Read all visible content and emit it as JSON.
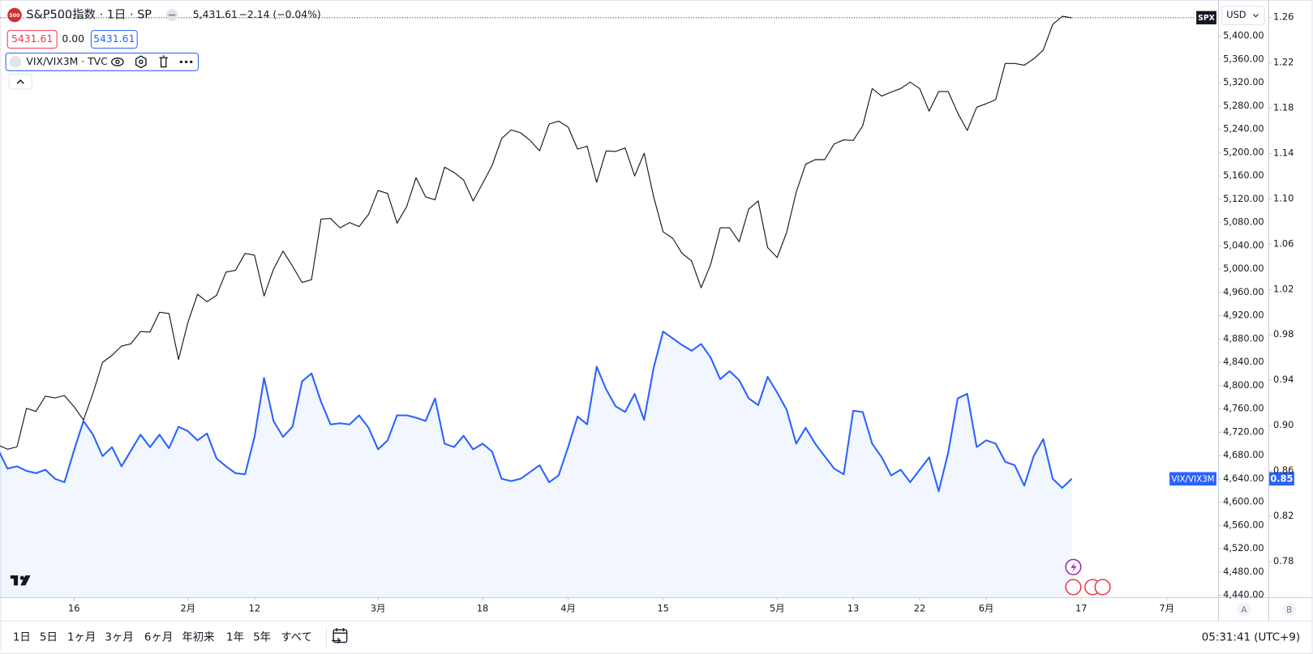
{
  "legend": {
    "logo": "500",
    "main": "S&P500指数 · 1日 · SP",
    "price": "5,431.61",
    "change": "−2.14 (−0.04%)",
    "boxes": [
      "5431.61",
      "0.00",
      "5431.61"
    ],
    "overlay": "VIX/VIX3M · TVC"
  },
  "price_axis": {
    "currency": "USD",
    "buttons": [
      "A",
      "B"
    ]
  },
  "toolbar": {
    "ranges": [
      "1日",
      "5日",
      "1ヶ月",
      "3ヶ月",
      "6ヶ月",
      "年初来",
      "1年",
      "5年",
      "すべて"
    ],
    "clock": "05:31:41 (UTC+9)"
  },
  "chart_data": {
    "type": "line",
    "x": [
      -8,
      -7,
      -6,
      -5,
      -4,
      -3,
      -2,
      -1,
      0,
      1,
      2,
      3,
      4,
      5,
      6,
      7,
      8,
      9,
      10,
      11,
      12,
      13,
      14,
      15,
      16,
      17,
      18,
      19,
      20,
      21,
      22,
      23,
      24,
      25,
      26,
      27,
      28,
      29,
      30,
      31,
      32,
      33,
      34,
      35,
      36,
      37,
      38,
      39,
      40,
      41,
      42,
      43,
      44,
      45,
      46,
      47,
      48,
      49,
      50,
      51,
      52,
      53,
      54,
      55,
      56,
      57,
      58,
      59,
      60,
      61,
      62,
      63,
      64,
      65,
      66,
      67,
      68,
      69,
      70,
      71,
      72,
      73,
      74,
      75,
      76,
      77,
      78,
      79,
      80,
      81,
      82,
      83,
      84,
      85,
      86,
      87,
      88,
      89,
      90,
      91,
      92,
      93,
      94,
      95,
      96,
      97,
      98,
      99,
      100,
      101,
      102,
      103,
      104,
      105
    ],
    "xlim": [
      -7.75,
      120.4
    ],
    "xticks": [
      {
        "value": 0,
        "label": "16"
      },
      {
        "value": 12,
        "label": "2月"
      },
      {
        "value": 19,
        "label": "12"
      },
      {
        "value": 32,
        "label": "3月"
      },
      {
        "value": 43,
        "label": "18"
      },
      {
        "value": 52,
        "label": "4月"
      },
      {
        "value": 62,
        "label": "15"
      },
      {
        "value": 74,
        "label": "5月"
      },
      {
        "value": 82,
        "label": "13"
      },
      {
        "value": 89,
        "label": "22"
      },
      {
        "value": 96,
        "label": "6月"
      },
      {
        "value": 106,
        "label": "17"
      },
      {
        "value": 115,
        "label": "7月"
      }
    ],
    "ylim": [
      4437,
      5462
    ],
    "yticks": [
      {
        "value": 4440,
        "label": "4,440.00"
      },
      {
        "value": 4480,
        "label": "4,480.00"
      },
      {
        "value": 4520,
        "label": "4,520.00"
      },
      {
        "value": 4560,
        "label": "4,560.00"
      },
      {
        "value": 4600,
        "label": "4,600.00"
      },
      {
        "value": 4640,
        "label": "4,640.00"
      },
      {
        "value": 4680,
        "label": "4,680.00"
      },
      {
        "value": 4720,
        "label": "4,720.00"
      },
      {
        "value": 4760,
        "label": "4,760.00"
      },
      {
        "value": 4800,
        "label": "4,800.00"
      },
      {
        "value": 4840,
        "label": "4,840.00"
      },
      {
        "value": 4880,
        "label": "4,880.00"
      },
      {
        "value": 4920,
        "label": "4,920.00"
      },
      {
        "value": 4960,
        "label": "4,960.00"
      },
      {
        "value": 5000,
        "label": "5,000.00"
      },
      {
        "value": 5040,
        "label": "5,040.00"
      },
      {
        "value": 5080,
        "label": "5,080.00"
      },
      {
        "value": 5120,
        "label": "5,120.00"
      },
      {
        "value": 5160,
        "label": "5,160.00"
      },
      {
        "value": 5200,
        "label": "5,200.00"
      },
      {
        "value": 5240,
        "label": "5,240.00"
      },
      {
        "value": 5280,
        "label": "5,280.00"
      },
      {
        "value": 5320,
        "label": "5,320.00"
      },
      {
        "value": 5360,
        "label": "5,360.00"
      },
      {
        "value": 5400,
        "label": "5,400.00"
      }
    ],
    "y2lim": [
      0.7486,
      1.2755
    ],
    "y2ticks": [
      0.78,
      0.82,
      0.86,
      {
        "value": 0.9,
        "label": "0.90"
      },
      0.94,
      0.98,
      1.02,
      1.06,
      {
        "value": 1.1,
        "label": "1.10"
      },
      1.14,
      1.18,
      1.22,
      1.26
    ],
    "series": [
      {
        "name": "SPX",
        "color": "#131722",
        "axis": "y",
        "values": [
          4698,
          4691,
          4695,
          4761,
          4756,
          4782,
          4779,
          4783,
          4764,
          4741,
          4787,
          4840,
          4852,
          4868,
          4872,
          4893,
          4892,
          4926,
          4924,
          4845,
          4909,
          4957,
          4944,
          4955,
          4995,
          4998,
          5027,
          5024,
          4954,
          5000,
          5031,
          5005,
          4977,
          4982,
          5086,
          5087,
          5071,
          5080,
          5073,
          5094,
          5135,
          5130,
          5079,
          5107,
          5157,
          5124,
          5119,
          5175,
          5166,
          5153,
          5117,
          5147,
          5178,
          5224,
          5239,
          5234,
          5221,
          5203,
          5249,
          5254,
          5244,
          5206,
          5211,
          5149,
          5203,
          5202,
          5208,
          5160,
          5199,
          5124,
          5064,
          5053,
          5027,
          5014,
          4968,
          5008,
          5071,
          5071,
          5047,
          5103,
          5117,
          5037,
          5020,
          5063,
          5132,
          5180,
          5188,
          5188,
          5215,
          5222,
          5221,
          5246,
          5310,
          5297,
          5304,
          5310,
          5321,
          5310,
          5271,
          5305,
          5305,
          5268,
          5238,
          5278,
          5284,
          5291,
          5353,
          5353,
          5350,
          5361,
          5376,
          5420,
          5434,
          5431.61
        ]
      },
      {
        "name": "VIX/VIX3M",
        "color": "#2962ff",
        "axis": "y2",
        "last_label": "0.85",
        "values": [
          0.879,
          0.862,
          0.864,
          0.86,
          0.858,
          0.861,
          0.853,
          0.85,
          0.878,
          0.904,
          0.892,
          0.873,
          0.881,
          0.864,
          0.878,
          0.892,
          0.881,
          0.892,
          0.88,
          0.899,
          0.895,
          0.887,
          0.893,
          0.871,
          0.864,
          0.858,
          0.857,
          0.89,
          0.942,
          0.904,
          0.89,
          0.899,
          0.939,
          0.946,
          0.921,
          0.901,
          0.902,
          0.901,
          0.909,
          0.898,
          0.879,
          0.887,
          0.909,
          0.909,
          0.907,
          0.904,
          0.924,
          0.884,
          0.881,
          0.891,
          0.879,
          0.884,
          0.877,
          0.853,
          0.851,
          0.853,
          0.859,
          0.865,
          0.85,
          0.856,
          0.881,
          0.908,
          0.901,
          0.952,
          0.932,
          0.917,
          0.912,
          0.928,
          0.905,
          0.951,
          0.983,
          0.977,
          0.971,
          0.966,
          0.972,
          0.96,
          0.941,
          0.948,
          0.94,
          0.924,
          0.918,
          0.943,
          0.929,
          0.914,
          0.884,
          0.898,
          0.884,
          0.873,
          0.862,
          0.857,
          0.913,
          0.912,
          0.884,
          0.872,
          0.856,
          0.861,
          0.85,
          0.861,
          0.872,
          0.842,
          0.876,
          0.924,
          0.928,
          0.881,
          0.887,
          0.884,
          0.868,
          0.865,
          0.847,
          0.873,
          0.888,
          0.853,
          0.845,
          0.853
        ]
      }
    ]
  }
}
